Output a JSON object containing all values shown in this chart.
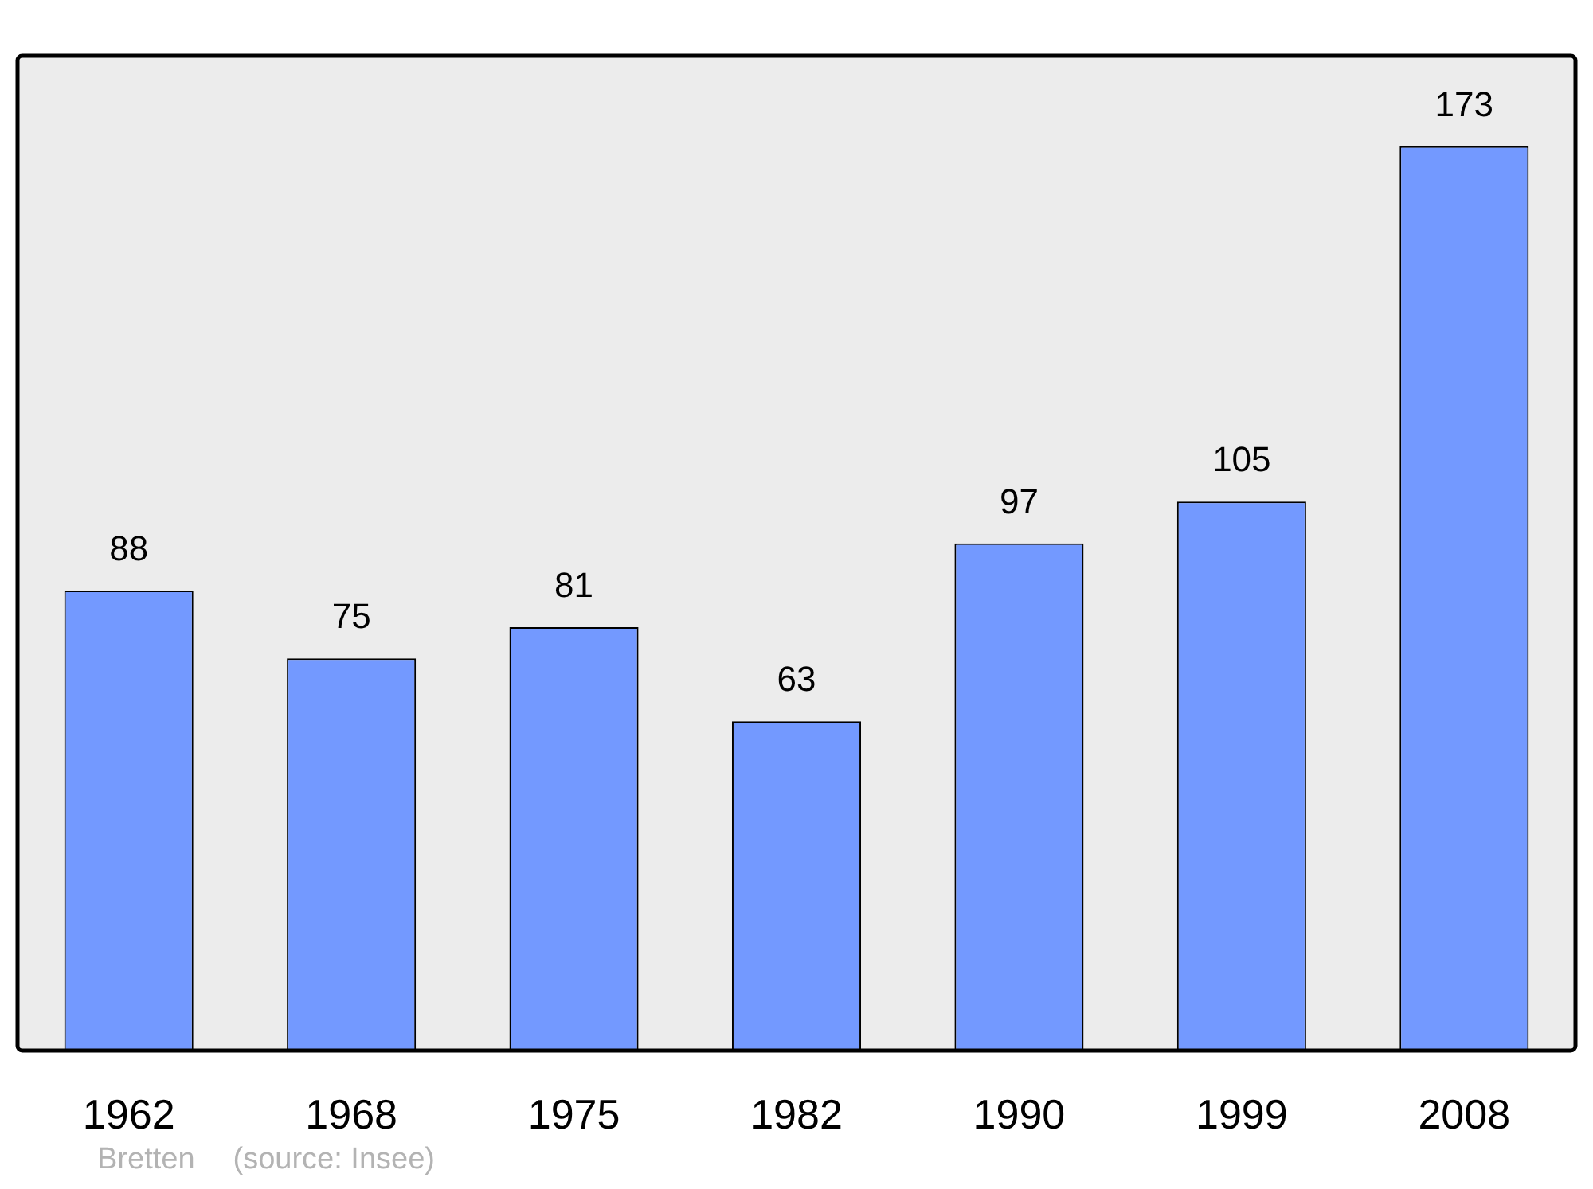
{
  "chart_data": {
    "type": "bar",
    "categories": [
      "1962",
      "1968",
      "1975",
      "1982",
      "1990",
      "1999",
      "2008"
    ],
    "values": [
      88,
      75,
      81,
      63,
      97,
      105,
      173
    ],
    "color": "#7399ff",
    "data_labels": true,
    "grid": false,
    "legend": false,
    "tick_labels": "x",
    "annotations": [
      "Bretten",
      "(source: Insee)"
    ]
  }
}
